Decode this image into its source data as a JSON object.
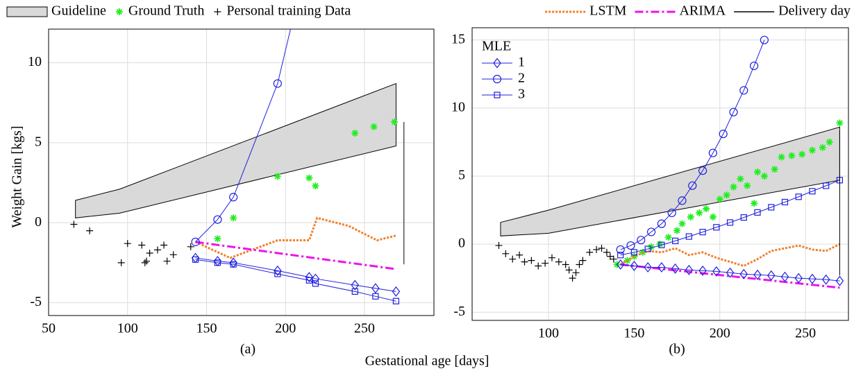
{
  "chart_data": [
    {
      "type": "line",
      "caption": "(a)",
      "ylabel": "Weight Gain [kgs]",
      "xlim": [
        50,
        294
      ],
      "ylim": [
        -5.8,
        12.1
      ],
      "xticks": [
        50,
        100,
        150,
        200,
        250
      ],
      "yticks": [
        -5,
        0,
        5,
        10
      ],
      "grid": true,
      "legend_align": "left",
      "series": [
        {
          "name": "Guideline",
          "legend": "above",
          "kind": "band",
          "color": "#d9d9d9",
          "x": [
            67,
            95,
            270
          ],
          "values": [
            0.3,
            0.6,
            4.8
          ],
          "upper": [
            1.4,
            2.1,
            8.7
          ]
        },
        {
          "name": "Ground Truth",
          "legend": "above",
          "color": "#22ee22",
          "marker": "star",
          "line": false,
          "x": [
            157,
            167,
            195,
            215,
            219,
            244,
            256,
            269
          ],
          "values": [
            -1.0,
            0.3,
            2.9,
            2.8,
            2.3,
            5.6,
            6.0,
            6.3
          ]
        },
        {
          "name": "Personal training Data",
          "legend": "above",
          "color": "#000000",
          "marker": "plus",
          "line": false,
          "x": [
            66,
            76,
            96,
            100,
            109,
            111,
            112,
            114,
            119,
            123,
            125,
            129,
            140
          ],
          "values": [
            -0.1,
            -0.5,
            -2.5,
            -1.3,
            -1.4,
            -2.5,
            -2.4,
            -1.9,
            -1.7,
            -1.4,
            -2.4,
            -2.0,
            -1.5
          ]
        },
        {
          "color": "#f07f2a",
          "dash": "dotted",
          "x": [
            143,
            165,
            195,
            215,
            220,
            240,
            258,
            270
          ],
          "values": [
            -1.2,
            -2.2,
            -1.1,
            -1.1,
            0.3,
            -0.2,
            -1.1,
            -0.8
          ]
        },
        {
          "color": "#ee11ee",
          "dash": "dashdot",
          "x": [
            143,
            270
          ],
          "values": [
            -1.2,
            -2.9
          ]
        },
        {
          "color": "#1f1fe0",
          "marker": "diamond",
          "x": [
            143,
            157,
            167,
            195,
            215,
            219,
            244,
            257,
            270
          ],
          "values": [
            -2.2,
            -2.4,
            -2.5,
            -3.0,
            -3.4,
            -3.5,
            -3.9,
            -4.1,
            -4.3
          ]
        },
        {
          "color": "#1f1fe0",
          "marker": "circle",
          "x": [
            143,
            157,
            167,
            195,
            215
          ],
          "values": [
            -1.2,
            0.2,
            1.6,
            8.7,
            17
          ]
        },
        {
          "color": "#1f1fe0",
          "marker": "square",
          "x": [
            143,
            157,
            167,
            195,
            215,
            219,
            244,
            257,
            270
          ],
          "values": [
            -2.3,
            -2.5,
            -2.6,
            -3.2,
            -3.6,
            -3.8,
            -4.3,
            -4.6,
            -4.9
          ]
        },
        {
          "color": "#000000",
          "x": [
            275,
            275
          ],
          "values": [
            -2.6,
            6.3
          ]
        }
      ]
    },
    {
      "type": "line",
      "caption": "(b)",
      "xlabel": "Gestational age [days]",
      "xlim": [
        55.4,
        275.1
      ],
      "ylim": [
        -5.6,
        15.9
      ],
      "xticks": [
        100,
        150,
        200,
        250
      ],
      "yticks": [
        -5,
        0,
        5,
        10,
        15
      ],
      "grid": true,
      "legend_align": "right",
      "legend_title": "MLE",
      "series": [
        {
          "kind": "band",
          "color": "#d9d9d9",
          "x": [
            72,
            100,
            270
          ],
          "values": [
            0.6,
            0.8,
            4.7
          ],
          "upper": [
            1.6,
            2.5,
            8.6
          ]
        },
        {
          "color": "#22ee22",
          "marker": "star",
          "line": false,
          "x": [
            140,
            146,
            150,
            155,
            160,
            165,
            170,
            175,
            178,
            183,
            188,
            192,
            196,
            200,
            204,
            208,
            212,
            216,
            220,
            222,
            226,
            232,
            236,
            242,
            248,
            254,
            260,
            264,
            270
          ],
          "values": [
            -1.5,
            -1.2,
            -0.9,
            -0.6,
            -0.2,
            0.0,
            0.5,
            1.0,
            1.5,
            2.0,
            2.3,
            2.6,
            2.0,
            3.3,
            3.6,
            4.2,
            4.8,
            4.3,
            3.0,
            5.3,
            5.0,
            5.5,
            6.4,
            6.5,
            6.6,
            6.9,
            7.1,
            7.5,
            8.9
          ]
        },
        {
          "color": "#000000",
          "marker": "plus",
          "line": false,
          "x": [
            71,
            75,
            79,
            83,
            86,
            90,
            94,
            98,
            102,
            106,
            110,
            112,
            114,
            116,
            118,
            120,
            124,
            128,
            131,
            134,
            136,
            138
          ],
          "values": [
            -0.1,
            -0.7,
            -1.1,
            -0.8,
            -1.3,
            -1.2,
            -1.6,
            -1.4,
            -1.0,
            -1.3,
            -1.5,
            -1.9,
            -2.5,
            -2.1,
            -1.5,
            -1.2,
            -0.6,
            -0.4,
            -0.3,
            -0.6,
            -0.9,
            -1.1
          ]
        },
        {
          "name": "LSTM",
          "legend": "above",
          "color": "#f07f2a",
          "dash": "dotted",
          "x": [
            142,
            150,
            158,
            166,
            174,
            182,
            190,
            198,
            206,
            214,
            222,
            230,
            238,
            246,
            254,
            262,
            270
          ],
          "values": [
            -1.5,
            -0.9,
            -0.5,
            -0.6,
            -0.3,
            -0.8,
            -0.6,
            -1.0,
            -1.3,
            -1.6,
            -1.1,
            -0.5,
            -0.3,
            -0.1,
            -0.4,
            -0.5,
            0.0
          ]
        },
        {
          "name": "ARIMA",
          "legend": "above",
          "color": "#ee11ee",
          "dash": "dashdot",
          "x": [
            142,
            270
          ],
          "values": [
            -1.5,
            -3.2
          ]
        },
        {
          "name": "1",
          "legend": "inset",
          "color": "#1f1fe0",
          "marker": "diamond",
          "x": [
            142,
            150,
            158,
            166,
            174,
            182,
            190,
            198,
            206,
            214,
            222,
            230,
            238,
            246,
            254,
            262,
            270
          ],
          "values": [
            -1.5,
            -1.6,
            -1.7,
            -1.7,
            -1.8,
            -1.9,
            -1.95,
            -2.0,
            -2.1,
            -2.2,
            -2.25,
            -2.3,
            -2.4,
            -2.5,
            -2.55,
            -2.6,
            -2.7
          ]
        },
        {
          "name": "2",
          "legend": "inset",
          "color": "#1f1fe0",
          "marker": "circle",
          "x": [
            142,
            148,
            154,
            160,
            166,
            172,
            178,
            184,
            190,
            196,
            202,
            208,
            214,
            220,
            226
          ],
          "values": [
            -0.4,
            -0.1,
            0.3,
            0.9,
            1.5,
            2.3,
            3.2,
            4.3,
            5.4,
            6.7,
            8.1,
            9.7,
            11.3,
            13.1,
            15.0
          ]
        },
        {
          "name": "3",
          "legend": "inset",
          "color": "#1f1fe0",
          "marker": "square",
          "x": [
            142,
            150,
            158,
            166,
            174,
            182,
            190,
            198,
            206,
            214,
            222,
            230,
            238,
            246,
            254,
            262,
            270
          ],
          "values": [
            -0.8,
            -0.6,
            -0.35,
            -0.06,
            0.24,
            0.56,
            0.89,
            1.24,
            1.59,
            1.96,
            2.33,
            2.71,
            3.09,
            3.48,
            3.89,
            4.29,
            4.7
          ]
        },
        {
          "name": "Delivery day",
          "legend": "above",
          "color": "#000000",
          "x": [
            270,
            270
          ],
          "values": [
            -2.3,
            8.3
          ]
        }
      ]
    }
  ]
}
